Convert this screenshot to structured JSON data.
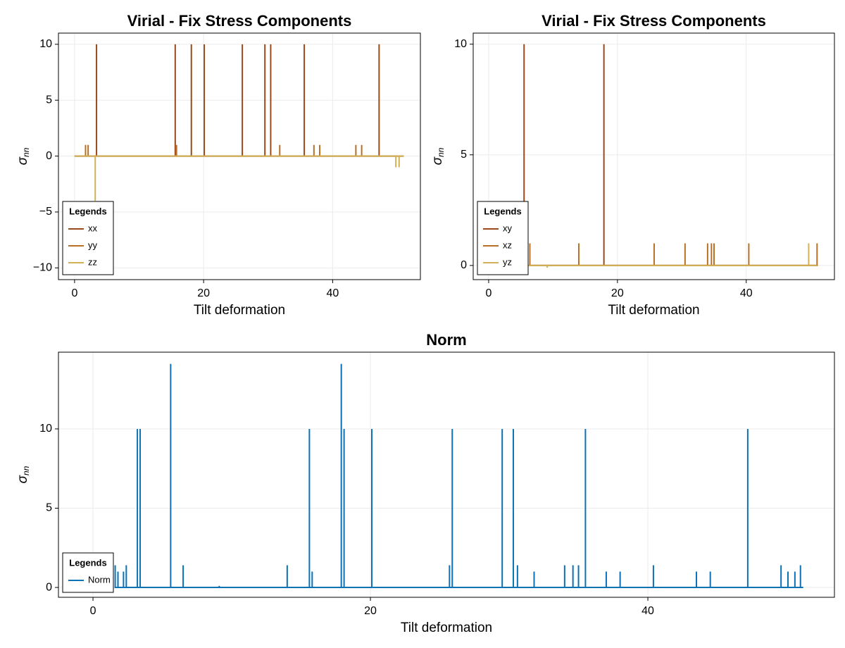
{
  "chart_data": [
    {
      "type": "line",
      "title": "Virial - Fix Stress Components",
      "xlabel": "Tilt deformation",
      "ylabel": {
        "symbol": "σ",
        "subscript": "nn"
      },
      "xlim": [
        -2.5,
        53.6
      ],
      "ylim": [
        -11.05,
        11.0
      ],
      "xticks": [
        0,
        20,
        40
      ],
      "yticks": [
        {
          "value": -10,
          "label": "−10"
        },
        {
          "value": -5,
          "label": "−5"
        },
        0,
        5,
        10
      ],
      "grid": true,
      "legend_title": "Legends",
      "legend_position": "bottom-left",
      "series": [
        {
          "name": "xx",
          "color": "#9a4a1a",
          "x": [
            0,
            3.4,
            3.4,
            3.4,
            15.6,
            15.6,
            15.6,
            18.1,
            18.1,
            18.1,
            20.1,
            20.1,
            20.1,
            26,
            26,
            26,
            29.5,
            29.5,
            29.5,
            30.4,
            30.4,
            30.4,
            35.6,
            35.6,
            35.6,
            47.2,
            47.2,
            47.2,
            51
          ],
          "values": [
            0,
            0,
            10,
            0,
            0,
            10,
            0,
            0,
            10,
            0,
            0,
            10,
            0,
            0,
            10,
            0,
            0,
            10,
            0,
            0,
            10,
            0,
            0,
            10,
            0,
            0,
            10,
            0,
            0
          ]
        },
        {
          "name": "yy",
          "color": "#b86f28",
          "x": [
            0,
            1.7,
            1.7,
            1.7,
            2.1,
            2.1,
            2.1,
            15.8,
            15.8,
            15.8,
            31.8,
            31.8,
            31.8,
            37.1,
            37.1,
            37.1,
            38,
            38,
            38,
            43.6,
            43.6,
            43.6,
            44.5,
            44.5,
            44.5,
            51
          ],
          "values": [
            0,
            0,
            1,
            0,
            0,
            1,
            0,
            0,
            1,
            0,
            0,
            1,
            0,
            0,
            1,
            0,
            0,
            1,
            0,
            0,
            1,
            0,
            0,
            1,
            0,
            0
          ]
        },
        {
          "name": "zz",
          "color": "#d1b157",
          "x": [
            0,
            3.2,
            3.2,
            3.2,
            49.8,
            49.8,
            49.8,
            50.3,
            50.3,
            50.3,
            51
          ],
          "values": [
            0,
            0,
            -4,
            0,
            0,
            -1,
            0,
            0,
            -1,
            0,
            0
          ]
        }
      ]
    },
    {
      "type": "line",
      "title": "Virial - Fix Stress Components",
      "xlabel": "Tilt deformation",
      "ylabel": {
        "symbol": "σ",
        "subscript": "nn"
      },
      "xlim": [
        -2.4,
        53.7
      ],
      "ylim": [
        -0.64,
        10.5
      ],
      "xticks": [
        0,
        20,
        40
      ],
      "yticks": [
        0,
        5,
        10
      ],
      "grid": true,
      "legend_title": "Legends",
      "legend_position": "bottom-left",
      "series": [
        {
          "name": "xy",
          "color": "#9a4a1a",
          "x": [
            0,
            5.5,
            5.5,
            5.5,
            17.9,
            17.9,
            17.9,
            51
          ],
          "values": [
            0,
            0,
            10,
            0,
            0,
            10,
            0,
            0
          ]
        },
        {
          "name": "xz",
          "color": "#b86f28",
          "x": [
            0,
            6.4,
            6.4,
            6.4,
            14,
            14,
            14,
            25.7,
            25.7,
            25.7,
            30.5,
            30.5,
            30.5,
            34,
            34,
            34,
            34.6,
            34.6,
            34.6,
            35,
            35,
            35,
            40.4,
            40.4,
            40.4,
            51,
            51,
            51
          ],
          "values": [
            0,
            0,
            1,
            0,
            0,
            1,
            0,
            0,
            1,
            0,
            0,
            1,
            0,
            0,
            1,
            0,
            0,
            1,
            0,
            0,
            1,
            0,
            0,
            1,
            0,
            0,
            1,
            0
          ]
        },
        {
          "name": "yz",
          "color": "#d1b157",
          "x": [
            0,
            9.1,
            9.1,
            9.1,
            49.7,
            49.7,
            49.7,
            51
          ],
          "values": [
            0,
            0,
            -0.1,
            0,
            0,
            1,
            0,
            0
          ]
        }
      ]
    },
    {
      "type": "line",
      "title": "Norm",
      "xlabel": "Tilt deformation",
      "ylabel": {
        "symbol": "σ",
        "subscript": "nn"
      },
      "xlim": [
        -2.49,
        53.45
      ],
      "ylim": [
        -0.62,
        14.84
      ],
      "xticks": [
        0,
        20,
        40
      ],
      "yticks": [
        0,
        5,
        10
      ],
      "grid": true,
      "legend_title": "Legends",
      "legend_position": "bottom-left",
      "series": [
        {
          "name": "Norm",
          "color": "#0b72b5",
          "x": [
            1.6,
            1.6,
            1.6,
            1.8,
            1.8,
            1.8,
            2.2,
            2.2,
            2.2,
            2.4,
            2.4,
            2.4,
            3.2,
            3.2,
            3.2,
            3.4,
            3.4,
            3.4,
            5.6,
            5.6,
            5.6,
            6.5,
            6.5,
            6.5,
            9.1,
            9.1,
            9.1,
            14,
            14,
            14,
            15.6,
            15.6,
            15.6,
            15.8,
            15.8,
            15.8,
            17.9,
            17.9,
            17.9,
            18.1,
            18.1,
            18.1,
            20.1,
            20.1,
            20.1,
            25.7,
            25.7,
            25.7,
            25.9,
            25.9,
            25.9,
            29.5,
            29.5,
            29.5,
            30.3,
            30.3,
            30.3,
            30.6,
            30.6,
            30.6,
            31.8,
            31.8,
            31.8,
            34,
            34,
            34,
            34.6,
            34.6,
            34.6,
            35,
            35,
            35,
            35.5,
            35.5,
            35.5,
            37,
            37,
            37,
            38,
            38,
            38,
            40.4,
            40.4,
            40.4,
            43.5,
            43.5,
            43.5,
            44.5,
            44.5,
            44.5,
            47.2,
            47.2,
            47.2,
            49.6,
            49.6,
            49.6,
            50.1,
            50.1,
            50.1,
            50.6,
            50.6,
            50.6,
            51,
            51,
            51,
            51.2
          ],
          "values": [
            0,
            1.4,
            0,
            0,
            1,
            0,
            0,
            1,
            0,
            0,
            1.4,
            0,
            0,
            10,
            0,
            0,
            10,
            0,
            0,
            14.1,
            0,
            0,
            1.4,
            0,
            0,
            0.1,
            0,
            0,
            1.4,
            0,
            0,
            10,
            0,
            0,
            1,
            0,
            0,
            14.1,
            0,
            0,
            10,
            0,
            0,
            10,
            0,
            0,
            1.4,
            0,
            0,
            10,
            0,
            0,
            10,
            0,
            0,
            10,
            0,
            0,
            1.4,
            0,
            0,
            1,
            0,
            0,
            1.4,
            0,
            0,
            1.4,
            0,
            0,
            1.4,
            0,
            0,
            10,
            0,
            0,
            1,
            0,
            0,
            1,
            0,
            0,
            1.4,
            0,
            0,
            1,
            0,
            0,
            1,
            0,
            0,
            10,
            0,
            0,
            1.4,
            0,
            0,
            1,
            0,
            0,
            1,
            0,
            0,
            1.4,
            0,
            0
          ]
        }
      ]
    }
  ]
}
